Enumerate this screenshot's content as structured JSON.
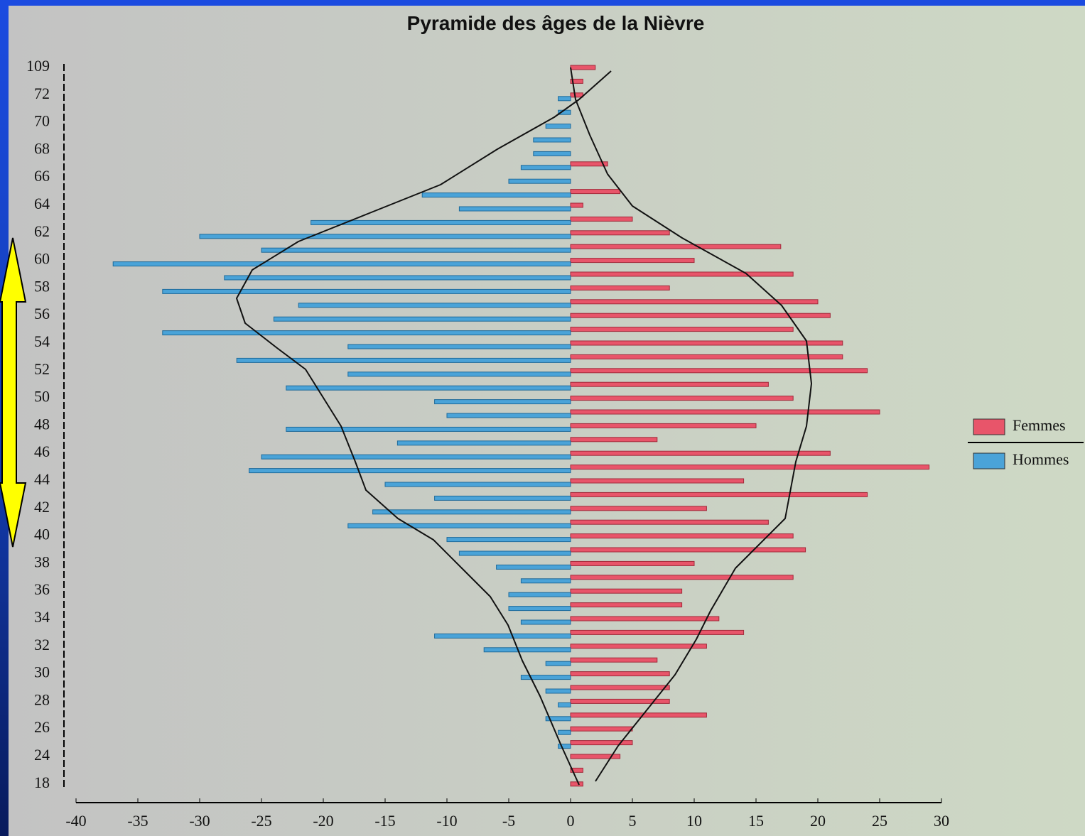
{
  "chart_data": {
    "type": "pyramid",
    "title": "Pyramide des âges de la Nièvre",
    "categories": [
      "109",
      null,
      "72",
      null,
      "70",
      null,
      "68",
      null,
      "66",
      null,
      "64",
      null,
      "62",
      null,
      "60",
      null,
      "58",
      null,
      "56",
      null,
      "54",
      null,
      "52",
      null,
      "50",
      null,
      "48",
      null,
      "46",
      null,
      "44",
      null,
      "42",
      null,
      "40",
      null,
      "38",
      null,
      "36",
      null,
      "34",
      null,
      "32",
      null,
      "30",
      null,
      "28",
      null,
      "26",
      null,
      "24",
      null,
      "18"
    ],
    "series": [
      {
        "name": "Femmes",
        "color": "#e8556a",
        "values": [
          2,
          1,
          1,
          0,
          0,
          0,
          0,
          3,
          0,
          4,
          1,
          5,
          8,
          17,
          10,
          18,
          8,
          20,
          21,
          18,
          22,
          22,
          24,
          16,
          18,
          25,
          15,
          7,
          21,
          29,
          14,
          24,
          11,
          16,
          18,
          19,
          10,
          18,
          9,
          9,
          12,
          14,
          11,
          7,
          8,
          8,
          8,
          11,
          5,
          5,
          4,
          1,
          1
        ]
      },
      {
        "name": "Hommes",
        "color": "#4aa3d8",
        "values": [
          0,
          0,
          -1,
          -1,
          -2,
          -3,
          -3,
          -4,
          -5,
          -12,
          -9,
          -21,
          -30,
          -25,
          -37,
          -28,
          -33,
          -22,
          -24,
          -33,
          -18,
          -27,
          -18,
          -23,
          -11,
          -10,
          -23,
          -14,
          -25,
          -26,
          -15,
          -11,
          -16,
          -18,
          -10,
          -9,
          -6,
          -4,
          -5,
          -5,
          -4,
          -11,
          -7,
          -2,
          -4,
          -2,
          -1,
          -2,
          -1,
          -1,
          0,
          0,
          0
        ]
      }
    ],
    "xlim": [
      -40,
      30
    ],
    "xticks": [
      -40,
      -35,
      -30,
      -25,
      -20,
      -15,
      -10,
      -5,
      0,
      5,
      10,
      15,
      20,
      25,
      30
    ],
    "legend": "right"
  }
}
